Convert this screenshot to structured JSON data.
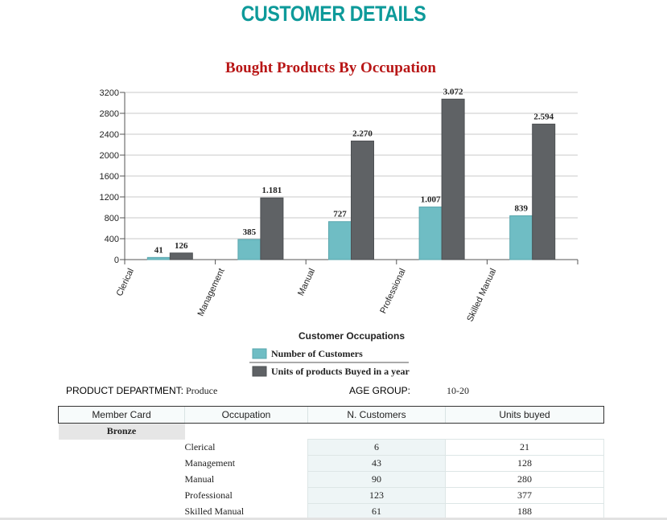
{
  "page": {
    "title": "CUSTOMER DETAILS"
  },
  "colors": {
    "title": "#0e9a9a",
    "chart_title": "#b81616",
    "label_teal": "#169b9b",
    "series_customers": "#6fbdc4",
    "series_units": "#5f6265"
  },
  "chart_data": {
    "type": "bar",
    "title": "Bought Products By Occupation",
    "xlabel": "Customer Occupations",
    "ylabel": "",
    "ylim": [
      0,
      3200
    ],
    "yticks": [
      0,
      400,
      800,
      1200,
      1600,
      2000,
      2400,
      2800,
      3200
    ],
    "yticks_labels": [
      "0",
      "400",
      "800",
      "1200",
      "1600",
      "2000",
      "2400",
      "2800",
      "3200"
    ],
    "grid": true,
    "legend": "bottom-center",
    "categories": [
      "Clerical",
      "Management",
      "Manual",
      "Professional",
      "Skilled Manual"
    ],
    "series": [
      {
        "name": "Number of Customers",
        "color": "#6fbdc4",
        "values": [
          41,
          385,
          727,
          1007,
          839
        ],
        "labels": [
          "41",
          "385",
          "727",
          "1.007",
          "839"
        ]
      },
      {
        "name": "Units of products Buyed in a year",
        "color": "#5f6265",
        "values": [
          126,
          1181,
          2270,
          3072,
          2594
        ],
        "labels": [
          "126",
          "1.181",
          "2.270",
          "3.072",
          "2.594"
        ]
      }
    ]
  },
  "filters": {
    "product_department_label": "PRODUCT DEPARTMENT:",
    "product_department_value": "Produce",
    "age_group_label": "AGE GROUP:",
    "age_group_value": "10-20"
  },
  "table": {
    "headers": [
      "Member Card",
      "Occupation",
      "N. Customers",
      "Units buyed"
    ],
    "group": "Bronze",
    "rows": [
      {
        "occupation": "Clerical",
        "customers": "6",
        "units": "21"
      },
      {
        "occupation": "Management",
        "customers": "43",
        "units": "128"
      },
      {
        "occupation": "Manual",
        "customers": "90",
        "units": "280"
      },
      {
        "occupation": "Professional",
        "customers": "123",
        "units": "377"
      },
      {
        "occupation": "Skilled Manual",
        "customers": "61",
        "units": "188"
      }
    ]
  }
}
